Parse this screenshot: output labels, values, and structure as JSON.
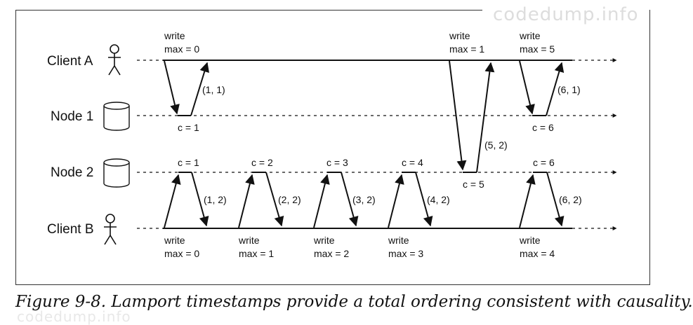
{
  "watermark": "codedump.info",
  "caption": "Figure 9-8. Lamport timestamps provide a total ordering consistent with causality.",
  "rows": {
    "client_a": "Client A",
    "node_1": "Node 1",
    "node_2": "Node 2",
    "client_b": "Client B"
  },
  "client_a_requests": [
    {
      "op": "write",
      "max": "max = 0"
    },
    {
      "op": "write",
      "max": "max = 1"
    },
    {
      "op": "write",
      "max": "max = 5"
    }
  ],
  "client_b_requests": [
    {
      "op": "write",
      "max": "max = 0"
    },
    {
      "op": "write",
      "max": "max = 1"
    },
    {
      "op": "write",
      "max": "max = 2"
    },
    {
      "op": "write",
      "max": "max = 3"
    },
    {
      "op": "write",
      "max": "max = 4"
    }
  ],
  "node_1_counters": [
    "c = 1",
    "c = 6"
  ],
  "node_2_counters": [
    "c = 1",
    "c = 2",
    "c = 3",
    "c = 4",
    "c = 5",
    "c = 6"
  ],
  "responses": {
    "a1": "(1, 1)",
    "a2": "(5, 2)",
    "a3": "(6, 1)",
    "b1": "(1, 2)",
    "b2": "(2, 2)",
    "b3": "(3, 2)",
    "b4": "(4, 2)",
    "b5": "(6, 2)"
  }
}
